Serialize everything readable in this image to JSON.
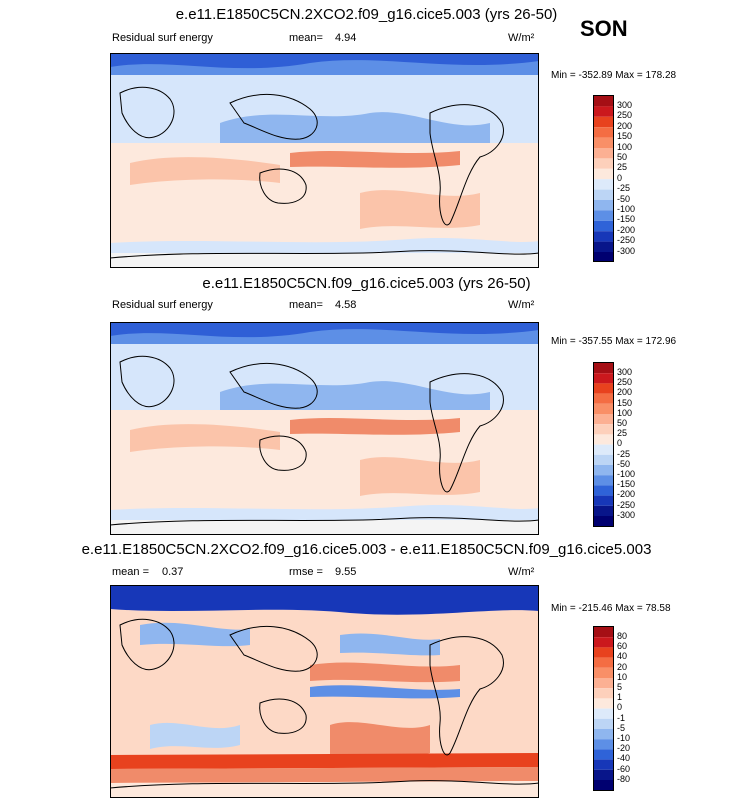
{
  "season": "SON",
  "panels": [
    {
      "title": "e.e11.E1850C5CN.2XCO2.f09_g16.cice5.003 (yrs 26-50)",
      "left_label": "Residual surf energy",
      "mean_label": "mean=",
      "mean_value": "4.94",
      "units": "W/m²",
      "minmax": "Min = -352.89 Max = 178.28",
      "colorbar_ticks": [
        "300",
        "250",
        "200",
        "150",
        "100",
        "50",
        "25",
        "0",
        "-25",
        "-50",
        "-100",
        "-150",
        "-200",
        "-250",
        "-300"
      ]
    },
    {
      "title": "e.e11.E1850C5CN.f09_g16.cice5.003 (yrs 26-50)",
      "left_label": "Residual surf energy",
      "mean_label": "mean=",
      "mean_value": "4.58",
      "units": "W/m²",
      "minmax": "Min = -357.55 Max = 172.96",
      "colorbar_ticks": [
        "300",
        "250",
        "200",
        "150",
        "100",
        "50",
        "25",
        "0",
        "-25",
        "-50",
        "-100",
        "-150",
        "-200",
        "-250",
        "-300"
      ]
    },
    {
      "title": "e.e11.E1850C5CN.2XCO2.f09_g16.cice5.003 - e.e11.E1850C5CN.f09_g16.cice5.003",
      "mean_label": "mean =",
      "mean_value": "0.37",
      "rmse_label": "rmse =",
      "rmse_value": "9.55",
      "units": "W/m²",
      "minmax": "Min = -215.46 Max = 78.58",
      "colorbar_ticks": [
        "80",
        "60",
        "40",
        "20",
        "10",
        "5",
        "1",
        "0",
        "-1",
        "-5",
        "-10",
        "-20",
        "-40",
        "-60",
        "-80"
      ]
    }
  ],
  "colorbar_colors": [
    "#a50f15",
    "#cb181d",
    "#e8421e",
    "#f46d43",
    "#f98f67",
    "#fcb093",
    "#fdd0bb",
    "#fde9dd",
    "#ddeafa",
    "#bcd5f5",
    "#8fb6ef",
    "#5d8fe6",
    "#2f63d8",
    "#1737b8",
    "#08158a",
    "#000070"
  ],
  "map_colors": {
    "pos_light": "#fde9dd",
    "pos_mid": "#fbc4aa",
    "pos_strong": "#f08b6a",
    "neg_light": "#d6e6fb",
    "neg_mid": "#8fb6ef",
    "neg_strong": "#2f5fd6",
    "coast": "#000000"
  }
}
